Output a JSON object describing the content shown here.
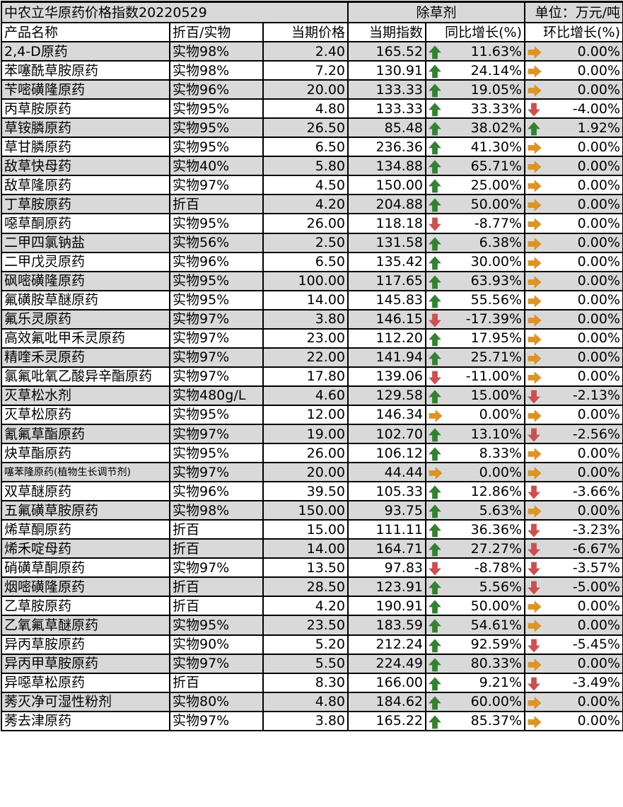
{
  "title": {
    "left": "中农立华原药价格指数20220529",
    "center": "除草剂",
    "right": "单位：万元/吨"
  },
  "headers": [
    "产品名称",
    "折百/实物",
    "当期价格",
    "当期指数",
    "同比增长(%)",
    "环比增长(%)"
  ],
  "colors": {
    "up": "#3a8f3a",
    "down": "#e05a5a",
    "flat": "#f2a52c",
    "row_alt": "#d9d9d9"
  },
  "icons": {
    "up": "arrow-up-icon",
    "down": "arrow-down-icon",
    "flat": "arrow-right-icon"
  },
  "rows": [
    [
      "2,4-D原药",
      "实物98%",
      "2.40",
      "165.52",
      "11.63%",
      "0.00%"
    ],
    [
      "苯噻酰草胺原药",
      "实物98%",
      "7.20",
      "130.91",
      "24.14%",
      "0.00%"
    ],
    [
      "苄嘧磺隆原药",
      "实物96%",
      "20.00",
      "133.33",
      "19.05%",
      "0.00%"
    ],
    [
      "丙草胺原药",
      "实物95%",
      "4.80",
      "133.33",
      "33.33%",
      "-4.00%"
    ],
    [
      "草铵膦原药",
      "实物95%",
      "26.50",
      "85.48",
      "38.02%",
      "1.92%"
    ],
    [
      "草甘膦原药",
      "实物95%",
      "6.50",
      "236.36",
      "41.30%",
      "0.00%"
    ],
    [
      "敌草快母药",
      "实物40%",
      "5.80",
      "134.88",
      "65.71%",
      "0.00%"
    ],
    [
      "敌草隆原药",
      "实物97%",
      "4.50",
      "150.00",
      "25.00%",
      "0.00%"
    ],
    [
      "丁草胺原药",
      "折百",
      "4.20",
      "204.88",
      "50.00%",
      "0.00%"
    ],
    [
      "噁草酮原药",
      "实物95%",
      "26.00",
      "118.18",
      "-8.77%",
      "0.00%"
    ],
    [
      "二甲四氯钠盐",
      "实物56%",
      "2.50",
      "131.58",
      "6.38%",
      "0.00%"
    ],
    [
      "二甲戊灵原药",
      "实物96%",
      "6.50",
      "135.42",
      "30.00%",
      "0.00%"
    ],
    [
      "砜嘧磺隆原药",
      "实物95%",
      "100.00",
      "117.65",
      "63.93%",
      "0.00%"
    ],
    [
      "氟磺胺草醚原药",
      "实物95%",
      "14.00",
      "145.83",
      "55.56%",
      "0.00%"
    ],
    [
      "氟乐灵原药",
      "实物97%",
      "3.80",
      "146.15",
      "-17.39%",
      "0.00%"
    ],
    [
      "高效氟吡甲禾灵原药",
      "实物97%",
      "23.00",
      "112.20",
      "17.95%",
      "0.00%"
    ],
    [
      "精喹禾灵原药",
      "实物97%",
      "22.00",
      "141.94",
      "25.71%",
      "0.00%"
    ],
    [
      "氯氟吡氧乙酸异辛酯原药",
      "实物97%",
      "17.80",
      "139.06",
      "-11.00%",
      "0.00%"
    ],
    [
      "灭草松水剂",
      "实物480g/L",
      "4.60",
      "129.58",
      "15.00%",
      "-2.13%"
    ],
    [
      "灭草松原药",
      "实物95%",
      "12.00",
      "146.34",
      "0.00%",
      "0.00%"
    ],
    [
      "氰氟草酯原药",
      "实物97%",
      "19.00",
      "102.70",
      "13.10%",
      "-2.56%"
    ],
    [
      "炔草酯原药",
      "实物95%",
      "26.00",
      "106.12",
      "8.33%",
      "0.00%"
    ],
    [
      "噻苯隆原药(植物生长调节剂)",
      "实物97%",
      "20.00",
      "44.44",
      "0.00%",
      "0.00%"
    ],
    [
      "双草醚原药",
      "实物96%",
      "39.50",
      "105.33",
      "12.86%",
      "-3.66%"
    ],
    [
      "五氟磺草胺原药",
      "实物98%",
      "150.00",
      "93.75",
      "5.63%",
      "0.00%"
    ],
    [
      "烯草酮原药",
      "折百",
      "15.00",
      "111.11",
      "36.36%",
      "-3.23%"
    ],
    [
      "烯禾啶母药",
      "折百",
      "14.00",
      "164.71",
      "27.27%",
      "-6.67%"
    ],
    [
      "硝磺草酮原药",
      "实物97%",
      "13.50",
      "97.83",
      "-8.78%",
      "-3.57%"
    ],
    [
      "烟嘧磺隆原药",
      "折百",
      "28.50",
      "123.91",
      "5.56%",
      "-5.00%"
    ],
    [
      "乙草胺原药",
      "折百",
      "4.20",
      "190.91",
      "50.00%",
      "0.00%"
    ],
    [
      "乙氧氟草醚原药",
      "实物95%",
      "23.50",
      "183.59",
      "54.61%",
      "0.00%"
    ],
    [
      "异丙草胺原药",
      "实物90%",
      "5.20",
      "212.24",
      "92.59%",
      "-5.45%"
    ],
    [
      "异丙甲草胺原药",
      "实物97%",
      "5.50",
      "224.49",
      "80.33%",
      "0.00%"
    ],
    [
      "异噁草松原药",
      "折百",
      "8.30",
      "166.00",
      "9.21%",
      "-3.49%"
    ],
    [
      "莠灭净可湿性粉剂",
      "实物80%",
      "4.80",
      "184.62",
      "60.00%",
      "0.00%"
    ],
    [
      "莠去津原药",
      "实物97%",
      "3.80",
      "165.22",
      "85.37%",
      "0.00%"
    ]
  ]
}
